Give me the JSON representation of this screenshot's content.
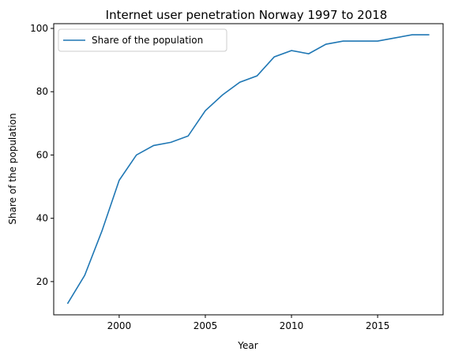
{
  "chart_data": {
    "type": "line",
    "title": "Internet user penetration Norway 1997 to 2018",
    "xlabel": "Year",
    "ylabel": "Share of the population",
    "xlim": [
      1996.2,
      2018.8
    ],
    "ylim": [
      9.5,
      101.5
    ],
    "xticks": [
      2000,
      2005,
      2010,
      2015
    ],
    "yticks": [
      20,
      40,
      60,
      80,
      100
    ],
    "grid": false,
    "legend": {
      "placement": "top-left"
    },
    "series": [
      {
        "name": "Share of the population",
        "color": "#1f77b4",
        "x": [
          1997,
          1998,
          1999,
          2000,
          2001,
          2002,
          2003,
          2004,
          2005,
          2006,
          2007,
          2008,
          2009,
          2010,
          2011,
          2012,
          2013,
          2014,
          2015,
          2016,
          2017,
          2018
        ],
        "values": [
          13,
          22,
          36,
          52,
          60,
          63,
          64,
          66,
          74,
          79,
          83,
          85,
          91,
          93,
          92,
          95,
          96,
          96,
          96,
          97,
          98,
          98
        ]
      }
    ]
  }
}
